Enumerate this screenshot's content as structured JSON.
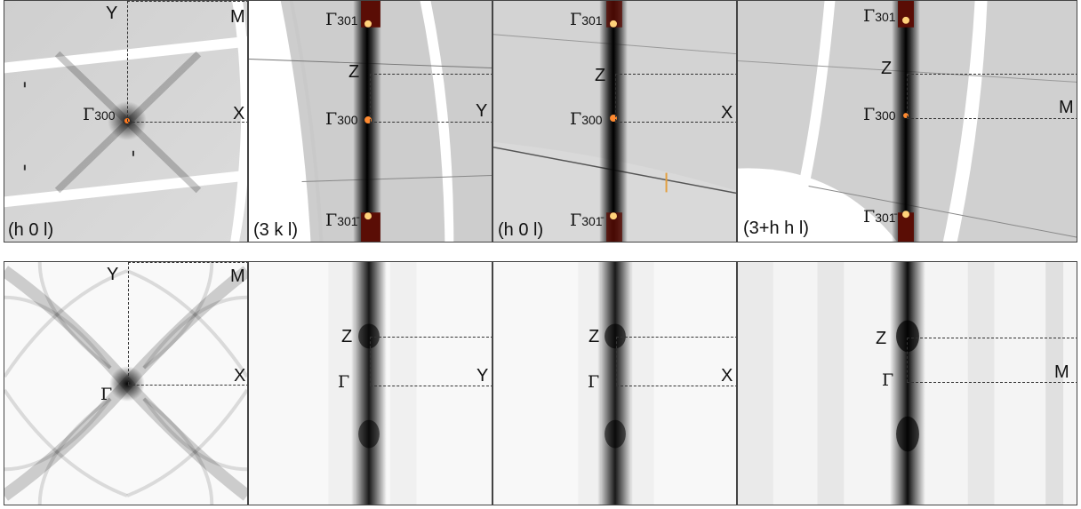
{
  "top_row": {
    "panels": [
      {
        "plane": "(h 0 l)",
        "gamma_center": "Γ",
        "gamma_center_sub": "300",
        "labels": {
          "y": "Y",
          "m": "M",
          "x": "X"
        }
      },
      {
        "plane": "(3 k l)",
        "gamma_top": "Γ",
        "gamma_top_sub": "301",
        "gamma_center": "Γ",
        "gamma_center_sub": "300",
        "gamma_bottom": "Γ",
        "gamma_bottom_sub": "301̄",
        "labels": {
          "z": "Z",
          "edge": "Y"
        }
      },
      {
        "plane": "(h 0 l)",
        "gamma_top": "Γ",
        "gamma_top_sub": "301",
        "gamma_center": "Γ",
        "gamma_center_sub": "300",
        "gamma_bottom": "Γ",
        "gamma_bottom_sub": "301̄",
        "labels": {
          "z": "Z",
          "edge": "X"
        }
      },
      {
        "plane": "(3+h h l)",
        "gamma_top": "Γ",
        "gamma_top_sub": "301",
        "gamma_center": "Γ",
        "gamma_center_sub": "300",
        "gamma_bottom": "Γ",
        "gamma_bottom_sub": "301̄",
        "labels": {
          "z": "Z",
          "edge": "M"
        }
      }
    ]
  },
  "bottom_row": {
    "panels": [
      {
        "gamma": "Γ",
        "labels": {
          "y": "Y",
          "m": "M",
          "x": "X"
        }
      },
      {
        "gamma": "Γ",
        "labels": {
          "z": "Z",
          "edge": "Y"
        }
      },
      {
        "gamma": "Γ",
        "labels": {
          "z": "Z",
          "edge": "X"
        }
      },
      {
        "gamma": "Γ",
        "labels": {
          "z": "Z",
          "edge": "M"
        }
      }
    ]
  },
  "colors": {
    "background_gray": "#d4d4d4",
    "hot_spot": "#ffd27a",
    "dark_red": "#5a0d05",
    "rod_dark": "#1a1a1a"
  }
}
